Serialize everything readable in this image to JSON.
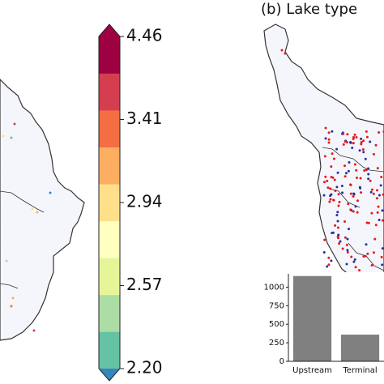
{
  "chart_data": [
    {
      "type": "colorbar",
      "colors": [
        "#66c2a5",
        "#abdda4",
        "#e6f598",
        "#ffffbf",
        "#fee08b",
        "#fdae61",
        "#f46d43",
        "#d53e4f",
        "#9e0142"
      ],
      "under_color": "#3288bd",
      "over_color": "#9e0142",
      "ticks": [
        {
          "value": 2.2,
          "label": "2.20"
        },
        2.57,
        2.94,
        3.41,
        4.46
      ]
    },
    {
      "type": "bar",
      "title": "(b) Lake type",
      "categories": [
        "Upstream",
        "Terminal"
      ],
      "values": [
        1150,
        360
      ],
      "color": "#808080",
      "ylim": [
        0,
        1180
      ],
      "yticks": [
        0,
        250,
        500,
        750,
        1000
      ]
    }
  ]
}
